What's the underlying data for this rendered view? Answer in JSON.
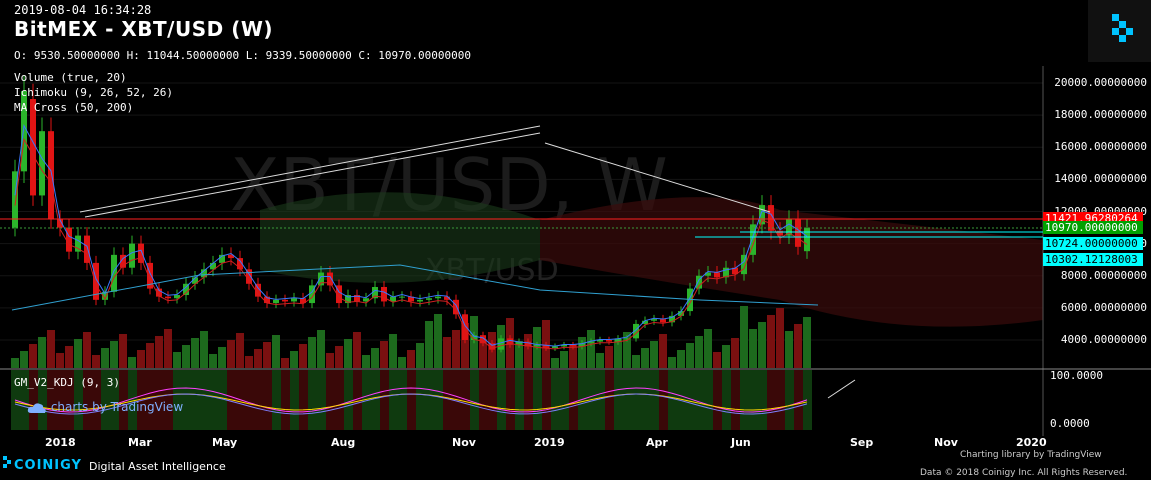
{
  "header": {
    "timestamp": "2019-08-04 16:34:28",
    "title": "BitMEX - XBT/USD (W)",
    "ohlc": "O: 9530.50000000 H: 11044.50000000 L: 9339.50000000 C: 10970.00000000"
  },
  "indicators": [
    "Volume (true, 20)",
    "Ichimoku (9, 26, 52, 26)",
    "MA Cross (50, 200)"
  ],
  "watermark": {
    "big": "XBT/USD, W",
    "small": "XBT/USD"
  },
  "subpane": {
    "label": "GM_V2_KDJ (9, 3)",
    "ticks": [
      "100.0000",
      "0.0000"
    ]
  },
  "tradingview_badge": "charts by TradingView",
  "price_ticks": [
    "20000.00000000",
    "18000.00000000",
    "16000.00000000",
    "14000.00000000",
    "12000.00000000",
    "10000.00000000",
    "8000.00000000",
    "6000.00000000",
    "4000.00000000"
  ],
  "tags": [
    {
      "text": "11421.96280264",
      "color": "#ff0000"
    },
    {
      "text": "10970.00000000",
      "color": "#00a000"
    },
    {
      "text": "10724.00000000",
      "color": "#00ffff"
    },
    {
      "text": "10302.12128003",
      "color": "#00ffff"
    }
  ],
  "x_labels": [
    "2018",
    "Mar",
    "May",
    "Aug",
    "Nov",
    "2019",
    "Apr",
    "Jun",
    "Sep",
    "Nov",
    "2020"
  ],
  "footer": {
    "brand": "COINIGY",
    "tagline": "Digital Asset Intelligence",
    "charting": "Charting library by TradingView",
    "copyright": "Data © 2018  Coinigy Inc. All Rights Reserved."
  },
  "chart_data": {
    "type": "candlestick",
    "interval": "W",
    "ylim": [
      3000,
      21000
    ],
    "candles": [
      [
        11000,
        14500
      ],
      [
        14500,
        19500
      ],
      [
        19000,
        13000
      ],
      [
        13000,
        17000
      ],
      [
        17000,
        11500
      ],
      [
        11500,
        11000
      ],
      [
        11000,
        9500
      ],
      [
        9500,
        10500
      ],
      [
        10500,
        8800
      ],
      [
        8800,
        6500
      ],
      [
        6500,
        7000
      ],
      [
        7000,
        9300
      ],
      [
        9300,
        8500
      ],
      [
        8500,
        10000
      ],
      [
        10000,
        8800
      ],
      [
        8800,
        7200
      ],
      [
        7200,
        6700
      ],
      [
        6700,
        6600
      ],
      [
        6600,
        6800
      ],
      [
        6800,
        7500
      ],
      [
        7500,
        7900
      ],
      [
        7900,
        8400
      ],
      [
        8400,
        8800
      ],
      [
        8800,
        9300
      ],
      [
        9300,
        9100
      ],
      [
        9100,
        8400
      ],
      [
        8400,
        7500
      ],
      [
        7500,
        6700
      ],
      [
        6700,
        6300
      ],
      [
        6300,
        6500
      ],
      [
        6500,
        6400
      ],
      [
        6400,
        6600
      ],
      [
        6600,
        6300
      ],
      [
        6300,
        7400
      ],
      [
        7400,
        8200
      ],
      [
        8200,
        7400
      ],
      [
        7400,
        6300
      ],
      [
        6300,
        6800
      ],
      [
        6800,
        6400
      ],
      [
        6400,
        6600
      ],
      [
        6600,
        7300
      ],
      [
        7300,
        6400
      ],
      [
        6400,
        6700
      ],
      [
        6700,
        6700
      ],
      [
        6700,
        6400
      ],
      [
        6400,
        6500
      ],
      [
        6500,
        6600
      ],
      [
        6600,
        6700
      ],
      [
        6700,
        6500
      ],
      [
        6500,
        5600
      ],
      [
        5600,
        4000
      ],
      [
        4000,
        4300
      ],
      [
        4300,
        3800
      ],
      [
        3800,
        3400
      ],
      [
        3400,
        4100
      ],
      [
        4100,
        3700
      ],
      [
        3700,
        3900
      ],
      [
        3900,
        3600
      ],
      [
        3600,
        3700
      ],
      [
        3700,
        3500
      ],
      [
        3500,
        3600
      ],
      [
        3600,
        3700
      ],
      [
        3700,
        3600
      ],
      [
        3600,
        3800
      ],
      [
        3800,
        3900
      ],
      [
        3900,
        4000
      ],
      [
        4000,
        3900
      ],
      [
        3900,
        4100
      ],
      [
        4100,
        4100
      ],
      [
        4100,
        5000
      ],
      [
        5000,
        5200
      ],
      [
        5200,
        5300
      ],
      [
        5300,
        5100
      ],
      [
        5100,
        5500
      ],
      [
        5500,
        5800
      ],
      [
        5800,
        7200
      ],
      [
        7200,
        8000
      ],
      [
        8000,
        8200
      ],
      [
        8200,
        7900
      ],
      [
        7900,
        8500
      ],
      [
        8500,
        8100
      ],
      [
        8100,
        9300
      ],
      [
        9300,
        11200
      ],
      [
        11200,
        12400
      ],
      [
        12400,
        10800
      ],
      [
        10800,
        10500
      ],
      [
        10500,
        11500
      ],
      [
        11500,
        9800
      ],
      [
        9530,
        10970
      ]
    ]
  }
}
